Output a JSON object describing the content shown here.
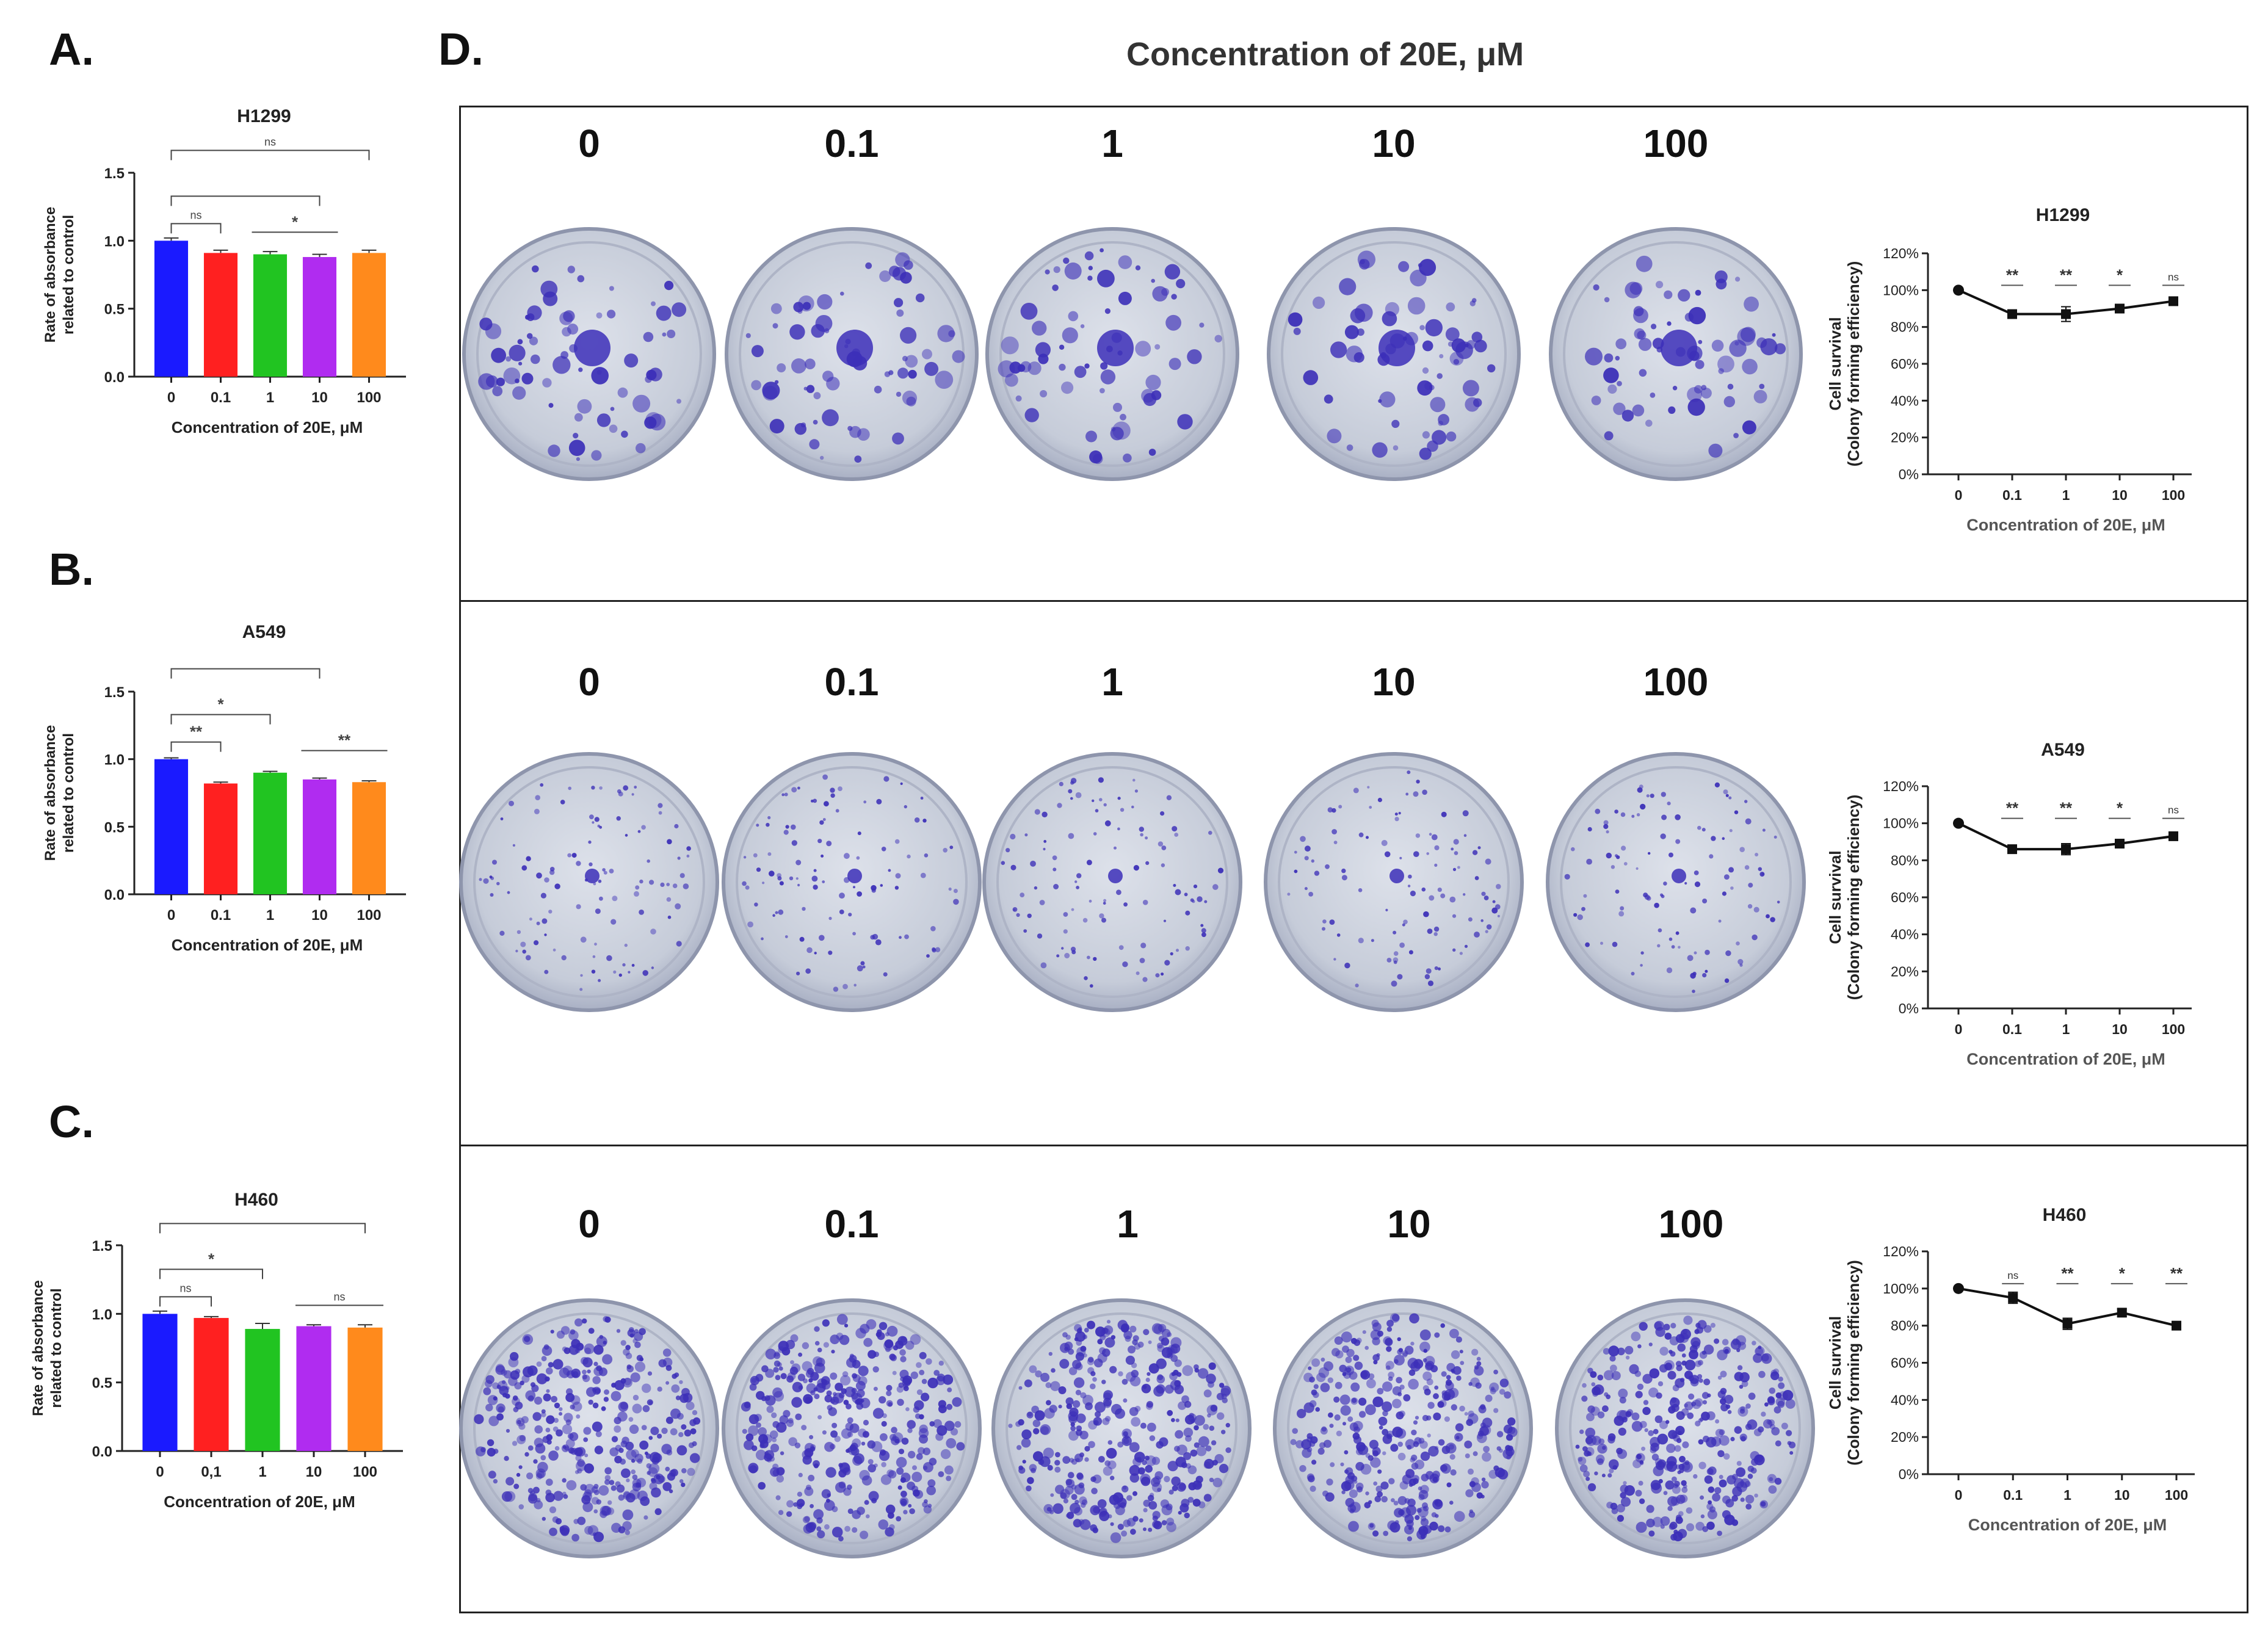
{
  "panels": {
    "a": "A.",
    "b": "B.",
    "c": "C.",
    "d": "D."
  },
  "d_title": "Concentration of 20E, μM",
  "dish_rows": [
    {
      "labels": [
        "0",
        "0.1",
        "1",
        "10",
        "100"
      ],
      "density": "low"
    },
    {
      "labels": [
        "0",
        "0.1",
        "1",
        "10",
        "100"
      ],
      "density": "sparse"
    },
    {
      "labels": [
        "0",
        "0.1",
        "1",
        "10",
        "100"
      ],
      "density": "dense"
    }
  ],
  "colors": {
    "bar_fill": [
      "#1a1aff",
      "#ff2020",
      "#21c421",
      "#b02cf0",
      "#ff8a1c"
    ],
    "dish_stain": "#3c2fb8",
    "dish_bg": "#c9ceda",
    "line": "#111111"
  },
  "chart_data": [
    {
      "type": "bar",
      "title": "H1299",
      "ylabel": "Rate of absorbance related to control",
      "xlabel": "Concentration of 20E, μM",
      "categories": [
        "0",
        "0.1",
        "1",
        "10",
        "100"
      ],
      "values": [
        1.0,
        0.91,
        0.9,
        0.88,
        0.91
      ],
      "errors": [
        0.02,
        0.02,
        0.02,
        0.02,
        0.02
      ],
      "ylim": [
        0,
        1.5
      ],
      "yticks": [
        "0.0",
        "0.5",
        "1.0",
        "1.5"
      ],
      "significance": [
        {
          "from": 0,
          "to": 1,
          "label": "ns",
          "level": 0
        },
        {
          "from": 0,
          "to": 3,
          "label": "",
          "level": 1
        },
        {
          "from": 2,
          "to": 3,
          "label": "*",
          "level": 0,
          "style": "line"
        },
        {
          "from": 0,
          "to": 4,
          "label": "ns",
          "level": 2
        }
      ]
    },
    {
      "type": "bar",
      "title": "A549",
      "ylabel": "Rate of absorbance related to control",
      "xlabel": "Concentration of 20E, μM",
      "categories": [
        "0",
        "0.1",
        "1",
        "10",
        "100"
      ],
      "values": [
        1.0,
        0.82,
        0.9,
        0.85,
        0.83
      ],
      "errors": [
        0.01,
        0.01,
        0.01,
        0.01,
        0.01
      ],
      "ylim": [
        0,
        1.5
      ],
      "yticks": [
        "0.0",
        "0.5",
        "1.0",
        "1.5"
      ],
      "significance": [
        {
          "from": 0,
          "to": 1,
          "label": "**",
          "level": 0
        },
        {
          "from": 0,
          "to": 2,
          "label": "*",
          "level": 1
        },
        {
          "from": 3,
          "to": 4,
          "label": "**",
          "level": 0,
          "style": "line"
        },
        {
          "from": 0,
          "to": 3,
          "label": "",
          "level": 2
        }
      ]
    },
    {
      "type": "bar",
      "title": "H460",
      "ylabel": "Rate of absorbance related to control",
      "xlabel": "Concentration of 20E, μM",
      "categories": [
        "0",
        "0,1",
        "1",
        "10",
        "100"
      ],
      "values": [
        1.0,
        0.97,
        0.89,
        0.91,
        0.9
      ],
      "errors": [
        0.02,
        0.01,
        0.04,
        0.01,
        0.02
      ],
      "ylim": [
        0,
        1.5
      ],
      "yticks": [
        "0.0",
        "0.5",
        "1.0",
        "1.5"
      ],
      "significance": [
        {
          "from": 0,
          "to": 1,
          "label": "ns",
          "level": 0
        },
        {
          "from": 0,
          "to": 2,
          "label": "*",
          "level": 1
        },
        {
          "from": 3,
          "to": 4,
          "label": "ns",
          "level": 0,
          "style": "line"
        },
        {
          "from": 0,
          "to": 4,
          "label": "",
          "level": 2
        }
      ]
    },
    {
      "type": "line",
      "title": "H1299",
      "ylabel": "Cell survival (Colony forming efficiency)",
      "ylabel_lines": [
        "Cell survival",
        "(Colony forming efficiency)"
      ],
      "xlabel": "Concentration of 20E, μM",
      "categories": [
        "0",
        "0.1",
        "1",
        "10",
        "100"
      ],
      "values": [
        100,
        87,
        87,
        90,
        94
      ],
      "errors": [
        1,
        2,
        4,
        1,
        1
      ],
      "marks": [
        "",
        "**",
        "**",
        "*",
        "ns"
      ],
      "ylim": [
        0,
        120
      ],
      "yticks": [
        "0%",
        "20%",
        "40%",
        "60%",
        "80%",
        "100%",
        "120%"
      ]
    },
    {
      "type": "line",
      "title": "A549",
      "ylabel": "Cell survival (Colony forming efficiency)",
      "ylabel_lines": [
        "Cell survival",
        "(Colony forming efficiency)"
      ],
      "xlabel": "Concentration of 20E, μM",
      "categories": [
        "0",
        "0.1",
        "1",
        "10",
        "100"
      ],
      "values": [
        100,
        86,
        86,
        89,
        93
      ],
      "errors": [
        1,
        2,
        3,
        1,
        1
      ],
      "marks": [
        "",
        "**",
        "**",
        "*",
        "ns"
      ],
      "ylim": [
        0,
        120
      ],
      "yticks": [
        "0%",
        "20%",
        "40%",
        "60%",
        "80%",
        "100%",
        "120%"
      ]
    },
    {
      "type": "line",
      "title": "H460",
      "ylabel": "Cell survival (Colony forming efficiency)",
      "ylabel_lines": [
        "Cell survival",
        "(Colony forming efficiency)"
      ],
      "xlabel": "Concentration of 20E, μM",
      "categories": [
        "0",
        "0.1",
        "1",
        "10",
        "100"
      ],
      "values": [
        100,
        95,
        81,
        87,
        80
      ],
      "errors": [
        1,
        3,
        3,
        2,
        2
      ],
      "marks": [
        "",
        "ns",
        "**",
        "*",
        "**"
      ],
      "ylim": [
        0,
        120
      ],
      "yticks": [
        "0%",
        "20%",
        "40%",
        "60%",
        "80%",
        "100%",
        "120%"
      ]
    }
  ]
}
